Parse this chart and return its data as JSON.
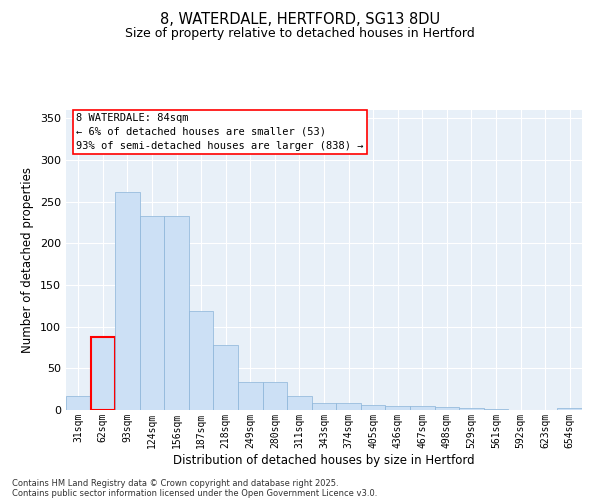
{
  "title_line1": "8, WATERDALE, HERTFORD, SG13 8DU",
  "title_line2": "Size of property relative to detached houses in Hertford",
  "xlabel": "Distribution of detached houses by size in Hertford",
  "ylabel": "Number of detached properties",
  "categories": [
    "31sqm",
    "62sqm",
    "93sqm",
    "124sqm",
    "156sqm",
    "187sqm",
    "218sqm",
    "249sqm",
    "280sqm",
    "311sqm",
    "343sqm",
    "374sqm",
    "405sqm",
    "436sqm",
    "467sqm",
    "498sqm",
    "529sqm",
    "561sqm",
    "592sqm",
    "623sqm",
    "654sqm"
  ],
  "values": [
    17,
    88,
    262,
    233,
    233,
    119,
    78,
    34,
    34,
    17,
    9,
    8,
    6,
    5,
    5,
    4,
    2,
    1,
    0,
    0,
    2
  ],
  "bar_color": "#cce0f5",
  "bar_edge_color": "#8ab4d8",
  "highlight_bar_index": 1,
  "highlight_bar_edge_color": "red",
  "annotation_box_text": "8 WATERDALE: 84sqm\n← 6% of detached houses are smaller (53)\n93% of semi-detached houses are larger (838) →",
  "ylim": [
    0,
    360
  ],
  "yticks": [
    0,
    50,
    100,
    150,
    200,
    250,
    300,
    350
  ],
  "bg_color": "#e8f0f8",
  "grid_color": "#ffffff",
  "footer_line1": "Contains HM Land Registry data © Crown copyright and database right 2025.",
  "footer_line2": "Contains public sector information licensed under the Open Government Licence v3.0."
}
